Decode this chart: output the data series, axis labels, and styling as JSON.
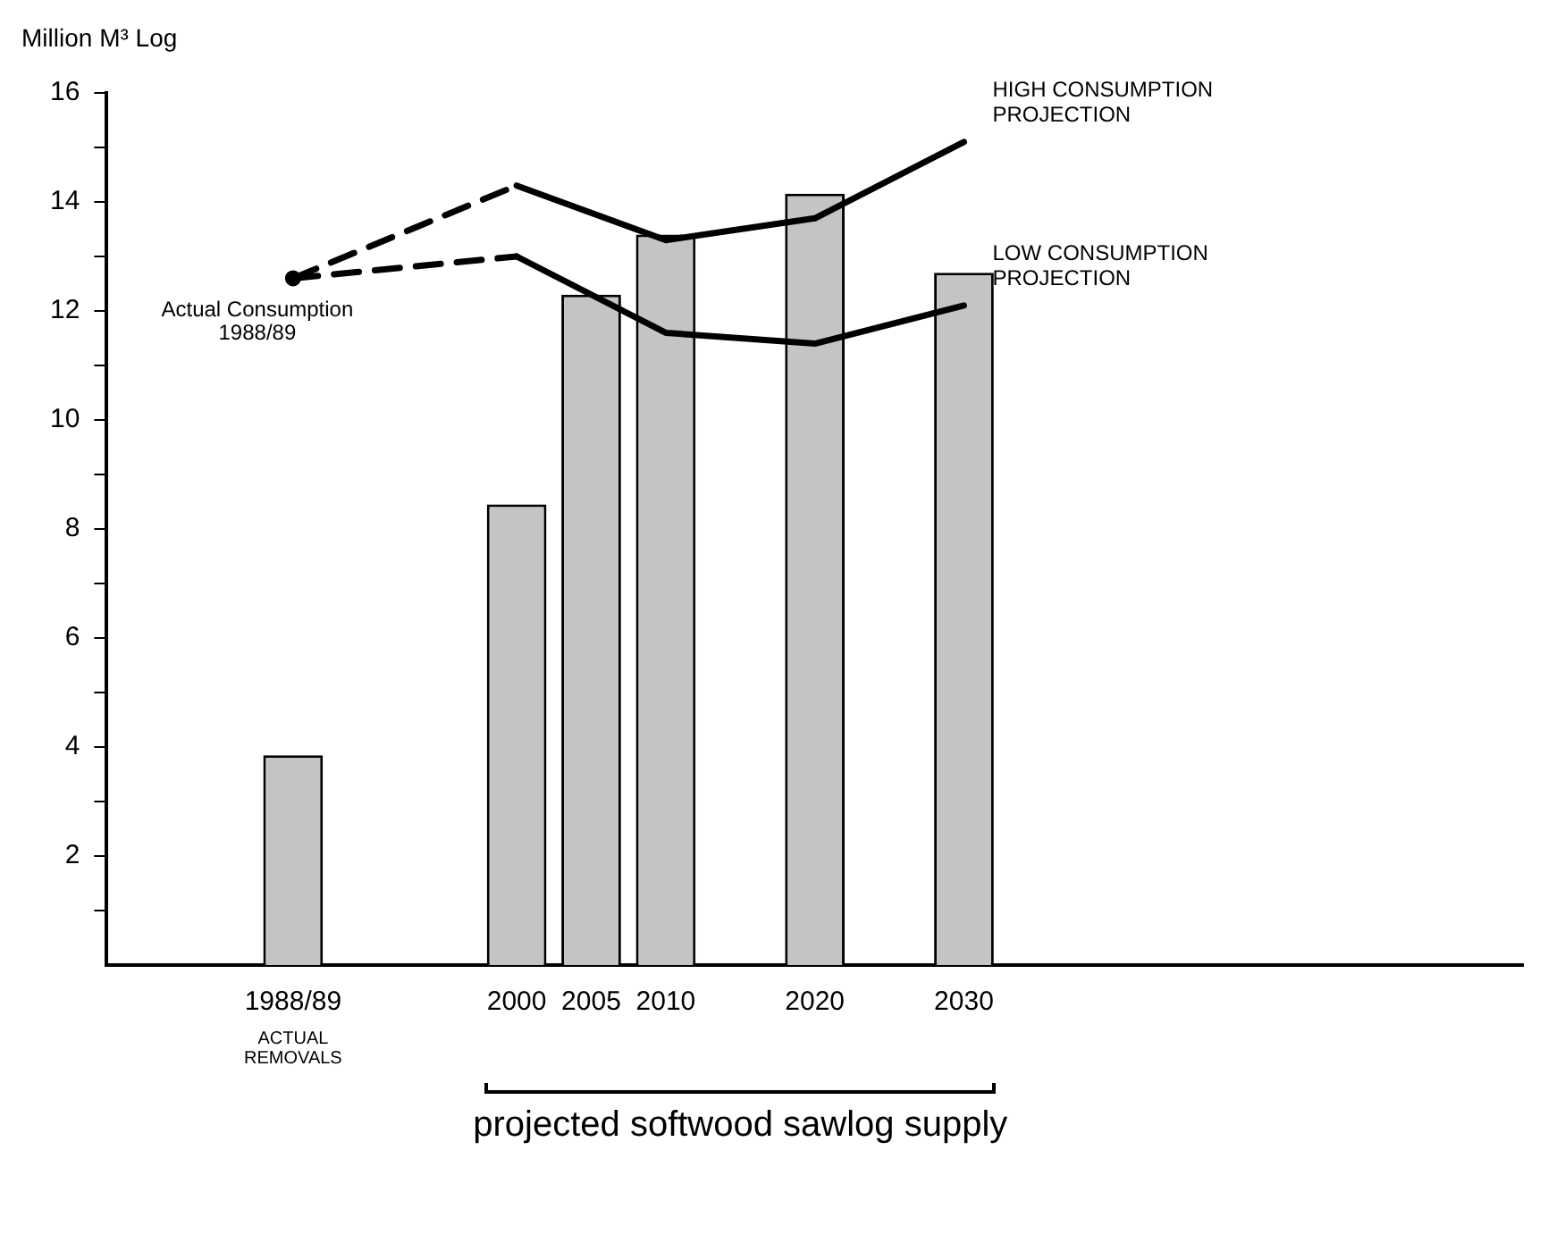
{
  "chart_data": {
    "type": "bar",
    "ylabel": "Million M³ Log",
    "categories": [
      null,
      null,
      "1988/89",
      null,
      null,
      "2000",
      "2005",
      "2010",
      null,
      "2020",
      null,
      "2030",
      null,
      null,
      null,
      null,
      null,
      null,
      null
    ],
    "series": [
      {
        "color": "#c4c4c4",
        "values": [
          null,
          null,
          3.85,
          null,
          null,
          8.45,
          12.3,
          13.4,
          null,
          14.15,
          null,
          12.7,
          null,
          null,
          null,
          null,
          null,
          null,
          null
        ]
      },
      {
        "type": "line",
        "color": "#000000",
        "line_style": "dashed",
        "marker": "none",
        "values": [
          null,
          null,
          12.6,
          null,
          null,
          14.3,
          null,
          null,
          null,
          null,
          null,
          null,
          null,
          null,
          null,
          null,
          null,
          null,
          null
        ]
      },
      {
        "type": "line",
        "color": "#000000",
        "line_style": "dashed",
        "marker": "none",
        "values": [
          null,
          null,
          12.6,
          null,
          null,
          13.0,
          null,
          null,
          null,
          null,
          null,
          null,
          null,
          null,
          null,
          null,
          null,
          null,
          null
        ]
      },
      {
        "type": "line",
        "name": "HIGH CONSUMPTION PROJECTION",
        "color": "#000000",
        "line_style": "solid",
        "marker": "none",
        "values": [
          null,
          null,
          null,
          null,
          null,
          14.3,
          null,
          13.3,
          null,
          13.7,
          null,
          15.1,
          null,
          null,
          null,
          null,
          null,
          null,
          null
        ]
      },
      {
        "type": "line",
        "name": "LOW CONSUMPTION PROJECTION",
        "color": "#000000",
        "line_style": "solid",
        "marker": "none",
        "values": [
          null,
          null,
          null,
          null,
          null,
          13.0,
          null,
          11.6,
          null,
          11.4,
          null,
          12.1,
          null,
          null,
          null,
          null,
          null,
          null,
          null
        ]
      },
      {
        "type": "scatter",
        "color": "#000000",
        "marker": "circle",
        "values": [
          null,
          null,
          12.6,
          null,
          null,
          null,
          null,
          null,
          null,
          null,
          null,
          null,
          null,
          null,
          null,
          null,
          null,
          null,
          null
        ]
      }
    ],
    "ylim": [
      0,
      16
    ],
    "yticks": [
      {
        "value": 1,
        "label": null
      },
      2,
      {
        "value": 3,
        "label": null
      },
      4,
      {
        "value": 5,
        "label": null
      },
      6,
      {
        "value": 7,
        "label": null
      },
      8,
      {
        "value": 9,
        "label": null
      },
      10,
      {
        "value": 11,
        "label": null
      },
      12,
      {
        "value": 13,
        "label": null
      },
      14,
      {
        "value": 15,
        "label": null
      },
      16
    ],
    "grid": false,
    "legend": false,
    "annotations": [
      {
        "text": "Actual Consumption\n1988/89",
        "x": "1988/89",
        "y": 12.6
      },
      "ACTUAL\nREMOVALS",
      "projected softwood sawlog supply"
    ]
  }
}
